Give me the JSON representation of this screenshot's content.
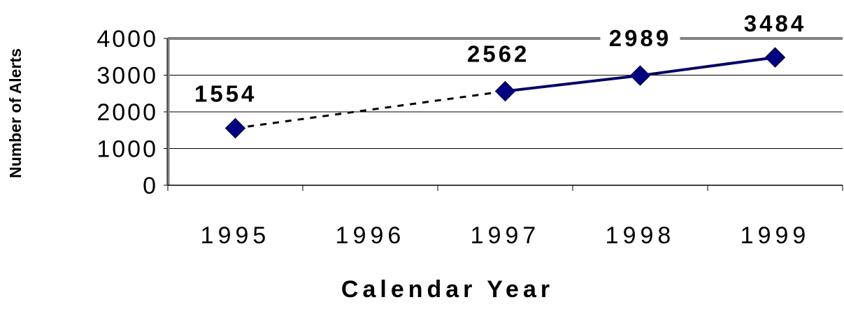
{
  "chart_data": {
    "type": "line",
    "title": "",
    "xlabel": "Calendar Year",
    "ylabel": "Number of Alerts",
    "categories": [
      "1995",
      "1996",
      "1997",
      "1998",
      "1999"
    ],
    "y_ticks": [
      "0",
      "1000",
      "2000",
      "3000",
      "4000"
    ],
    "ylim": [
      0,
      4000
    ],
    "grid": true,
    "legend": "none",
    "series": [
      {
        "values": [
          1554,
          null,
          2562,
          2989,
          3484
        ],
        "data_labels": [
          "1554",
          "",
          "2562",
          "2989",
          "3484"
        ],
        "color": "#000080",
        "marker": "diamond",
        "line_style_1995_to_1997": "dashed",
        "line_style_1997_to_1999": "solid"
      }
    ]
  }
}
